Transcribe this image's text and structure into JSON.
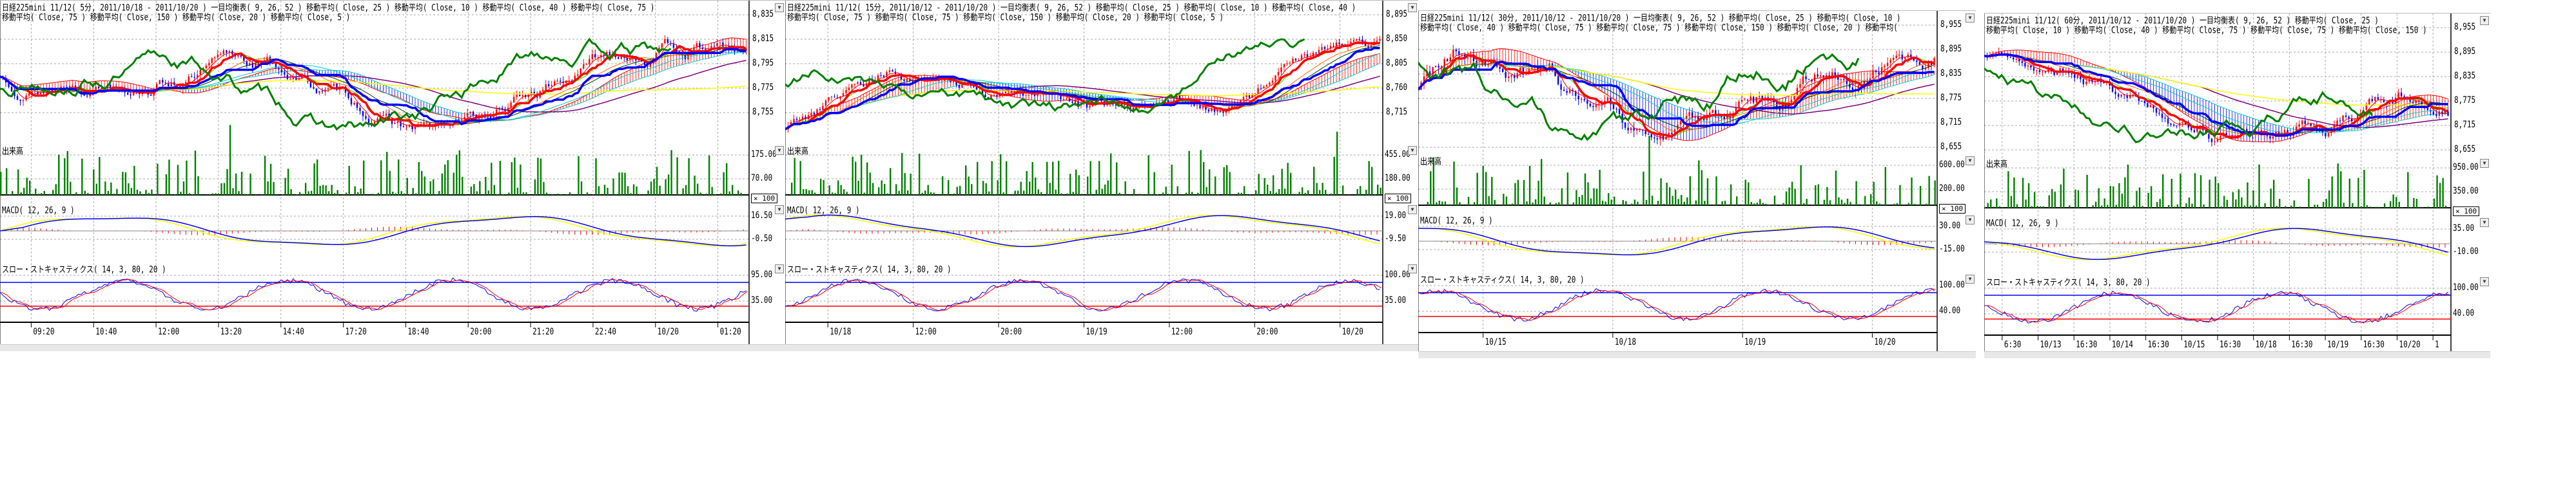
{
  "panel_labels": {
    "volume": "出来高",
    "macd": "MACD( 12, 26, 9 )",
    "stoch": "スロー・ストキャスティクス( 14, 3, 80, 20 )",
    "multiplier": "× 100"
  },
  "colors": {
    "up": "#ff0000",
    "down": "#0000ff",
    "volume": "#008000",
    "lagging_span": "#008000",
    "macd": "#0000ff",
    "signal": "#ffff00",
    "grid": "#aaaaaa"
  },
  "charts": [
    {
      "title_lines": [
        "日経225mini 11/12( 5分, 2011/10/18 - 2011/10/20 )   一目均衡表( 9, 26, 52 )   移動平均( Close, 25 )   移動平均( Close, 10 )   移動平均( Close, 40 )   移動平均( Close, 75 )",
        "移動平均( Close, 75 )   移動平均( Close, 150 )   移動平均( Close, 20 )   移動平均( Close, 5 )"
      ],
      "price_ticks": [
        "8,835",
        "8,815",
        "8,795",
        "8,775",
        "8,755"
      ],
      "volume_ticks": [
        "175.00",
        "70.00"
      ],
      "macd_ticks": [
        "16.50",
        "-0.50"
      ],
      "stoch_ticks": [
        "95.00",
        "35.00"
      ],
      "x_labels": [
        "09:20",
        "10:40",
        "12:00",
        "13:20",
        "14:40",
        "17:20",
        "18:40",
        "20:00",
        "21:20",
        "22:40",
        "10/20",
        "01:20"
      ]
    },
    {
      "title_lines": [
        "日経225mini 11/12( 15分, 2011/10/12 - 2011/10/20 )   一目均衡表( 9, 26, 52 )   移動平均( Close, 25 )   移動平均( Close, 10 )   移動平均( Close, 40 )",
        "移動平均( Close, 75 )   移動平均( Close, 75 )   移動平均( Close, 150 )   移動平均( Close, 20 )   移動平均( Close, 5 )"
      ],
      "price_ticks": [
        "8,895",
        "8,850",
        "8,805",
        "8,760",
        "8,715"
      ],
      "volume_ticks": [
        "455.00",
        "180.00"
      ],
      "macd_ticks": [
        "19.00",
        "-9.50"
      ],
      "stoch_ticks": [
        "100.00",
        "35.00"
      ],
      "x_labels": [
        "10/18",
        "12:00",
        "20:00",
        "10/19",
        "12:00",
        "20:00",
        "10/20"
      ]
    },
    {
      "title_lines": [
        "日経225mini 11/12( 30分, 2011/10/12 - 2011/10/20 )   一目均衡表( 9, 26, 52 )   移動平均( Close, 25 )   移動平均( Close, 10 )",
        "移動平均( Close, 40 )   移動平均( Close, 75 )   移動平均( Close, 75 )   移動平均( Close, 150 )   移動平均( Close, 20 )   移動平均("
      ],
      "price_ticks": [
        "8,955",
        "8,895",
        "8,835",
        "8,775",
        "8,715",
        "8,655"
      ],
      "volume_ticks": [
        "600.00",
        "200.00"
      ],
      "macd_ticks": [
        "30.00",
        "-15.00"
      ],
      "stoch_ticks": [
        "100.00",
        "40.00"
      ],
      "x_labels": [
        "10/15",
        "10/18",
        "10/19",
        "10/20"
      ]
    },
    {
      "title_lines": [
        "日経225mini 11/12( 60分, 2011/10/12 - 2011/10/20 )   一目均衡表( 9, 26, 52 )   移動平均( Close, 25 )",
        "移動平均( Close, 10 )   移動平均( Close, 40 )   移動平均( Close, 75 )   移動平均( Close, 75 )   移動平均( Close, 150 )"
      ],
      "price_ticks": [
        "8,955",
        "8,895",
        "8,835",
        "8,775",
        "8,715",
        "8,655"
      ],
      "volume_ticks": [
        "950.00",
        "350.00"
      ],
      "macd_ticks": [
        "35.00",
        "-10.00"
      ],
      "stoch_ticks": [
        "100.00",
        "40.00"
      ],
      "x_labels": [
        "6:30",
        "10/13",
        "16:30",
        "10/14",
        "16:30",
        "10/15",
        "16:30",
        "10/18",
        "16:30",
        "10/19",
        "16:30",
        "10/20",
        "1"
      ]
    }
  ]
}
